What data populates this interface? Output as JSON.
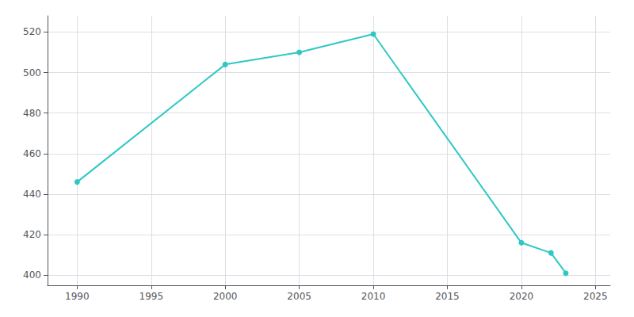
{
  "chart_data": {
    "type": "line",
    "x": [
      1990,
      2000,
      2005,
      2010,
      2020,
      2022,
      2023
    ],
    "values": [
      446,
      504,
      510,
      519,
      416,
      411,
      401
    ],
    "color": "#2ec8c4",
    "marker": "circle",
    "xlim": [
      1988,
      2026
    ],
    "ylim": [
      395,
      528
    ],
    "xticks": [
      1990,
      1995,
      2000,
      2005,
      2010,
      2015,
      2020,
      2025
    ],
    "yticks": [
      400,
      420,
      440,
      460,
      480,
      500,
      520
    ],
    "grid": true
  }
}
